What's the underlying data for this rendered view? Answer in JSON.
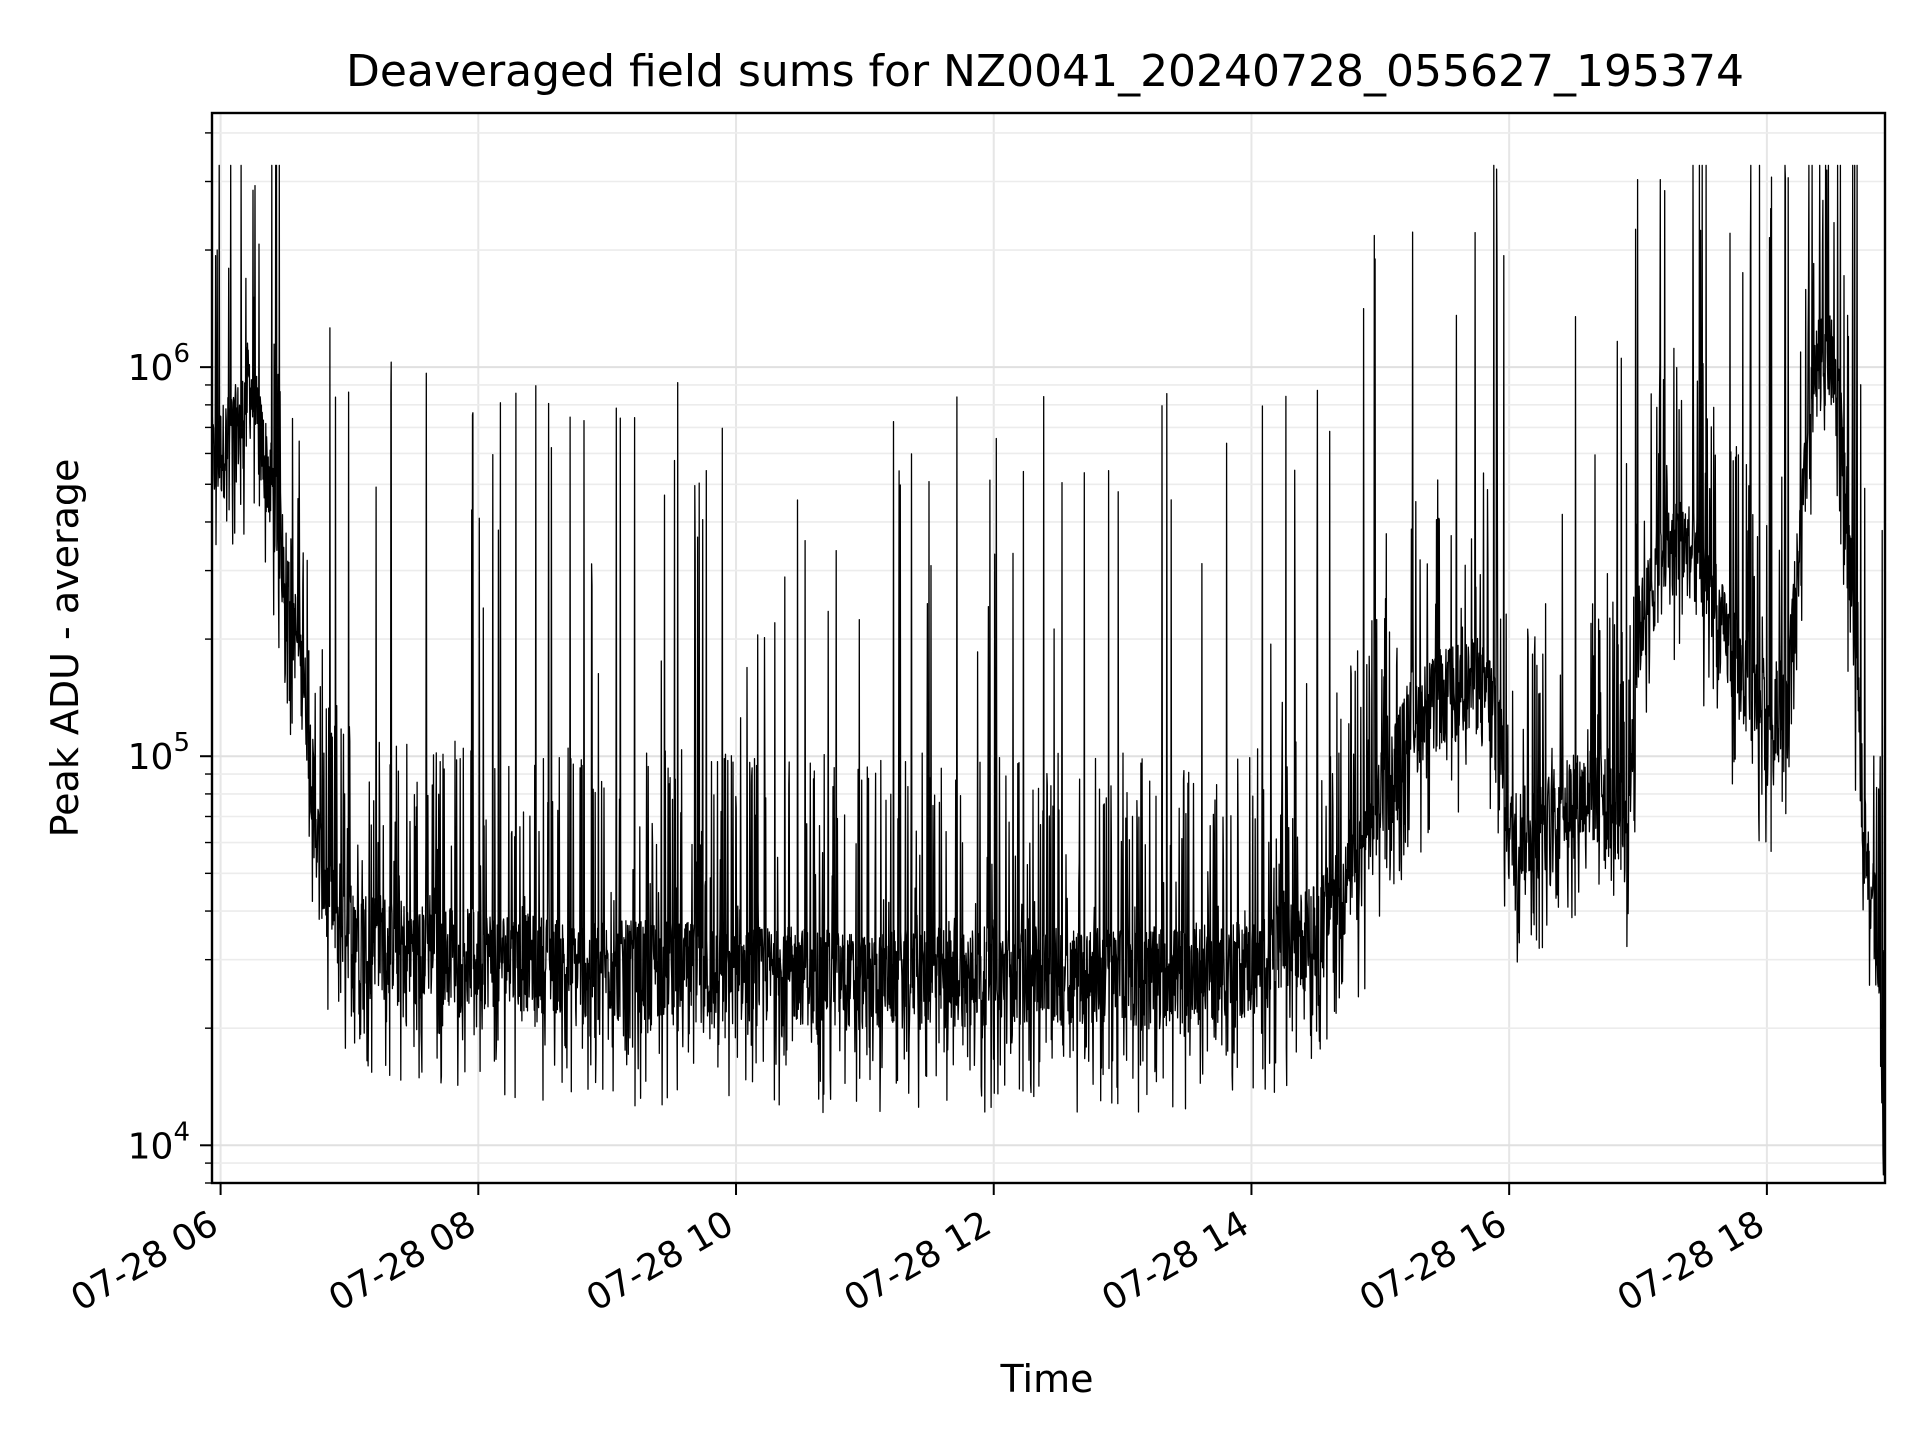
{
  "chart_data": {
    "type": "line",
    "title": "Deaveraged field sums for NZ0041_20240728_055627_195374",
    "xlabel": "Time",
    "ylabel": "Peak ADU - average",
    "yscale": "log",
    "ylim": [
      8000,
      4500000
    ],
    "xlim": [
      "2024-07-28 05:56",
      "2024-07-28 18:55"
    ],
    "x_ticks": [
      {
        "value": "2024-07-28 06:00",
        "label": "07-28 06"
      },
      {
        "value": "2024-07-28 08:00",
        "label": "07-28 08"
      },
      {
        "value": "2024-07-28 10:00",
        "label": "07-28 10"
      },
      {
        "value": "2024-07-28 12:00",
        "label": "07-28 12"
      },
      {
        "value": "2024-07-28 14:00",
        "label": "07-28 14"
      },
      {
        "value": "2024-07-28 16:00",
        "label": "07-28 16"
      },
      {
        "value": "2024-07-28 18:00",
        "label": "07-28 18"
      }
    ],
    "y_ticks": [
      {
        "value": 10000,
        "base": "10",
        "exp": "4"
      },
      {
        "value": 100000,
        "base": "10",
        "exp": "5"
      },
      {
        "value": 1000000,
        "base": "10",
        "exp": "6"
      }
    ],
    "grid": true,
    "line_color": "#000000",
    "series": [
      {
        "x": [
          "2024-07-28 05:56",
          "2024-07-28 06:05",
          "2024-07-28 06:10",
          "2024-07-28 06:13",
          "2024-07-28 06:18",
          "2024-07-28 06:25",
          "2024-07-28 06:30",
          "2024-07-28 06:35",
          "2024-07-28 06:40",
          "2024-07-28 06:45",
          "2024-07-28 06:50",
          "2024-07-28 06:55",
          "2024-07-28 07:00",
          "2024-07-28 07:15",
          "2024-07-28 07:30",
          "2024-07-28 08:00",
          "2024-07-28 08:30",
          "2024-07-28 09:00",
          "2024-07-28 09:30",
          "2024-07-28 10:00",
          "2024-07-28 10:30",
          "2024-07-28 11:00",
          "2024-07-28 11:30",
          "2024-07-28 12:00",
          "2024-07-28 12:30",
          "2024-07-28 13:00",
          "2024-07-28 13:30",
          "2024-07-28 14:00",
          "2024-07-28 14:30",
          "2024-07-28 14:50",
          "2024-07-28 15:00",
          "2024-07-28 15:15",
          "2024-07-28 15:30",
          "2024-07-28 15:45",
          "2024-07-28 15:55",
          "2024-07-28 16:00",
          "2024-07-28 16:15",
          "2024-07-28 16:30",
          "2024-07-28 16:45",
          "2024-07-28 16:55",
          "2024-07-28 17:00",
          "2024-07-28 17:10",
          "2024-07-28 17:20",
          "2024-07-28 17:30",
          "2024-07-28 17:40",
          "2024-07-28 17:50",
          "2024-07-28 18:00",
          "2024-07-28 18:10",
          "2024-07-28 18:20",
          "2024-07-28 18:25",
          "2024-07-28 18:30",
          "2024-07-28 18:35",
          "2024-07-28 18:40",
          "2024-07-28 18:45",
          "2024-07-28 18:50",
          "2024-07-28 18:55"
        ],
        "y": [
          550000,
          650000,
          700000,
          900000,
          650000,
          450000,
          300000,
          200000,
          130000,
          60000,
          40000,
          37000,
          35000,
          33000,
          31000,
          30000,
          29000,
          28000,
          28000,
          27000,
          27000,
          26000,
          27000,
          27000,
          27000,
          27000,
          27000,
          28000,
          35000,
          50000,
          75000,
          120000,
          140000,
          150000,
          130000,
          60000,
          65000,
          75000,
          80000,
          60000,
          200000,
          300000,
          350000,
          300000,
          200000,
          150000,
          120000,
          150000,
          700000,
          1100000,
          1000000,
          650000,
          220000,
          70000,
          40000,
          12000
        ]
      }
    ]
  }
}
